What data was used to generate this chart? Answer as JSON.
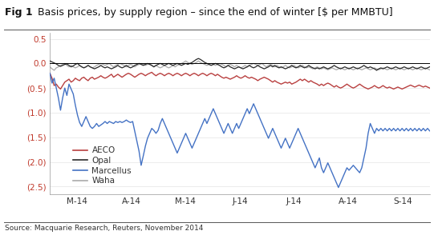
{
  "title_bold": "Fig 1",
  "title_normal": "   Basis prices, by supply region – since the end of winter [$ per MMBTU]",
  "source": "Source: Macquarie Research, Reuters, November 2014",
  "xlabel_ticks": [
    "M-14",
    "A-14",
    "M-14",
    "J-14",
    "J-14",
    "A-14",
    "S-14"
  ],
  "ylim": [
    -2.65,
    0.62
  ],
  "yticks": [
    0.5,
    0.0,
    -0.5,
    -1.0,
    -1.5,
    -2.0,
    -2.5
  ],
  "ytick_labels": [
    "0.5",
    "0.0",
    "(0.5)",
    "(1.0)",
    "(1.5)",
    "(2.0)",
    "(2.5)"
  ],
  "background_color": "#ffffff",
  "title_fontsize": 9.0,
  "axis_fontsize": 7.5,
  "legend_colors": {
    "AECO": "#b94040",
    "Opal": "#2a2a2a",
    "Marcellus": "#4472c4",
    "Waha": "#aaaaaa"
  },
  "n_points": 180,
  "aeco": [
    -0.2,
    -0.3,
    -0.45,
    -0.42,
    -0.48,
    -0.52,
    -0.45,
    -0.38,
    -0.35,
    -0.32,
    -0.38,
    -0.35,
    -0.3,
    -0.33,
    -0.35,
    -0.3,
    -0.28,
    -0.32,
    -0.35,
    -0.3,
    -0.28,
    -0.32,
    -0.3,
    -0.28,
    -0.25,
    -0.28,
    -0.3,
    -0.28,
    -0.25,
    -0.22,
    -0.28,
    -0.25,
    -0.22,
    -0.25,
    -0.28,
    -0.25,
    -0.22,
    -0.2,
    -0.22,
    -0.25,
    -0.28,
    -0.25,
    -0.22,
    -0.2,
    -0.22,
    -0.25,
    -0.22,
    -0.2,
    -0.18,
    -0.22,
    -0.25,
    -0.22,
    -0.2,
    -0.22,
    -0.25,
    -0.22,
    -0.2,
    -0.22,
    -0.25,
    -0.22,
    -0.2,
    -0.22,
    -0.25,
    -0.22,
    -0.2,
    -0.22,
    -0.25,
    -0.22,
    -0.2,
    -0.22,
    -0.25,
    -0.22,
    -0.2,
    -0.22,
    -0.25,
    -0.22,
    -0.2,
    -0.22,
    -0.25,
    -0.22,
    -0.25,
    -0.28,
    -0.3,
    -0.28,
    -0.3,
    -0.32,
    -0.3,
    -0.28,
    -0.25,
    -0.28,
    -0.3,
    -0.28,
    -0.25,
    -0.28,
    -0.3,
    -0.28,
    -0.3,
    -0.32,
    -0.35,
    -0.32,
    -0.3,
    -0.28,
    -0.3,
    -0.32,
    -0.35,
    -0.38,
    -0.35,
    -0.38,
    -0.4,
    -0.42,
    -0.4,
    -0.38,
    -0.4,
    -0.38,
    -0.42,
    -0.4,
    -0.38,
    -0.35,
    -0.32,
    -0.35,
    -0.32,
    -0.35,
    -0.38,
    -0.35,
    -0.38,
    -0.4,
    -0.42,
    -0.45,
    -0.42,
    -0.45,
    -0.42,
    -0.4,
    -0.42,
    -0.45,
    -0.48,
    -0.45,
    -0.48,
    -0.5,
    -0.48,
    -0.45,
    -0.42,
    -0.45,
    -0.48,
    -0.5,
    -0.48,
    -0.45,
    -0.42,
    -0.45,
    -0.48,
    -0.5,
    -0.52,
    -0.5,
    -0.48,
    -0.45,
    -0.48,
    -0.5,
    -0.48,
    -0.45,
    -0.48,
    -0.5,
    -0.48,
    -0.5,
    -0.52,
    -0.5,
    -0.48,
    -0.5,
    -0.52,
    -0.5,
    -0.48,
    -0.46,
    -0.44,
    -0.46,
    -0.48,
    -0.46,
    -0.44,
    -0.46,
    -0.48,
    -0.46,
    -0.48,
    -0.5
  ],
  "opal": [
    0.05,
    0.03,
    0.01,
    -0.01,
    -0.04,
    -0.06,
    -0.04,
    -0.02,
    -0.01,
    -0.04,
    -0.07,
    -0.05,
    -0.02,
    0.0,
    -0.04,
    -0.07,
    -0.09,
    -0.07,
    -0.04,
    -0.07,
    -0.09,
    -0.11,
    -0.09,
    -0.07,
    -0.04,
    -0.07,
    -0.09,
    -0.07,
    -0.09,
    -0.11,
    -0.09,
    -0.07,
    -0.04,
    -0.07,
    -0.09,
    -0.07,
    -0.04,
    -0.07,
    -0.09,
    -0.07,
    -0.04,
    -0.02,
    0.0,
    -0.02,
    -0.04,
    -0.02,
    0.0,
    -0.02,
    -0.04,
    -0.07,
    -0.04,
    -0.02,
    0.0,
    -0.02,
    -0.04,
    -0.02,
    0.0,
    -0.02,
    -0.04,
    -0.02,
    0.0,
    -0.02,
    -0.04,
    -0.02,
    0.0,
    -0.02,
    0.0,
    0.02,
    0.05,
    0.08,
    0.1,
    0.08,
    0.05,
    0.02,
    0.0,
    -0.02,
    -0.04,
    -0.02,
    0.0,
    -0.02,
    -0.04,
    -0.07,
    -0.09,
    -0.07,
    -0.04,
    -0.07,
    -0.09,
    -0.11,
    -0.09,
    -0.07,
    -0.09,
    -0.11,
    -0.09,
    -0.07,
    -0.04,
    -0.07,
    -0.09,
    -0.07,
    -0.04,
    -0.07,
    -0.09,
    -0.11,
    -0.09,
    -0.07,
    -0.04,
    -0.07,
    -0.04,
    -0.07,
    -0.09,
    -0.07,
    -0.09,
    -0.11,
    -0.09,
    -0.07,
    -0.04,
    -0.07,
    -0.09,
    -0.07,
    -0.04,
    -0.07,
    -0.09,
    -0.07,
    -0.04,
    -0.07,
    -0.09,
    -0.11,
    -0.09,
    -0.11,
    -0.09,
    -0.07,
    -0.09,
    -0.11,
    -0.09,
    -0.07,
    -0.04,
    -0.07,
    -0.09,
    -0.11,
    -0.09,
    -0.07,
    -0.09,
    -0.11,
    -0.09,
    -0.07,
    -0.09,
    -0.11,
    -0.09,
    -0.07,
    -0.04,
    -0.07,
    -0.09,
    -0.07,
    -0.09,
    -0.11,
    -0.14,
    -0.11,
    -0.09,
    -0.11,
    -0.09,
    -0.07,
    -0.09,
    -0.11,
    -0.09,
    -0.07,
    -0.09,
    -0.11,
    -0.09,
    -0.07,
    -0.09,
    -0.11,
    -0.09,
    -0.07,
    -0.09,
    -0.11,
    -0.09,
    -0.07,
    -0.09,
    -0.11,
    -0.09,
    -0.07
  ],
  "marcellus": [
    -0.2,
    -0.4,
    -0.3,
    -0.5,
    -0.7,
    -0.95,
    -0.7,
    -0.5,
    -0.65,
    -0.42,
    -0.52,
    -0.62,
    -0.85,
    -1.05,
    -1.2,
    -1.28,
    -1.18,
    -1.08,
    -1.18,
    -1.28,
    -1.32,
    -1.28,
    -1.22,
    -1.28,
    -1.25,
    -1.22,
    -1.18,
    -1.22,
    -1.18,
    -1.2,
    -1.22,
    -1.18,
    -1.2,
    -1.18,
    -1.2,
    -1.18,
    -1.15,
    -1.18,
    -1.2,
    -1.18,
    -1.38,
    -1.58,
    -1.78,
    -2.07,
    -1.88,
    -1.68,
    -1.52,
    -1.42,
    -1.32,
    -1.36,
    -1.42,
    -1.36,
    -1.22,
    -1.12,
    -1.22,
    -1.32,
    -1.42,
    -1.52,
    -1.62,
    -1.72,
    -1.82,
    -1.72,
    -1.62,
    -1.52,
    -1.42,
    -1.52,
    -1.62,
    -1.72,
    -1.62,
    -1.52,
    -1.42,
    -1.32,
    -1.22,
    -1.12,
    -1.22,
    -1.12,
    -1.02,
    -0.92,
    -1.02,
    -1.12,
    -1.22,
    -1.32,
    -1.42,
    -1.32,
    -1.22,
    -1.32,
    -1.42,
    -1.32,
    -1.22,
    -1.32,
    -1.22,
    -1.12,
    -1.02,
    -0.92,
    -1.02,
    -0.92,
    -0.82,
    -0.92,
    -1.02,
    -1.12,
    -1.22,
    -1.32,
    -1.42,
    -1.52,
    -1.42,
    -1.32,
    -1.42,
    -1.52,
    -1.62,
    -1.72,
    -1.62,
    -1.52,
    -1.62,
    -1.72,
    -1.62,
    -1.52,
    -1.42,
    -1.32,
    -1.42,
    -1.52,
    -1.62,
    -1.72,
    -1.82,
    -1.92,
    -2.02,
    -2.12,
    -2.02,
    -1.92,
    -2.12,
    -2.22,
    -2.12,
    -2.02,
    -2.12,
    -2.22,
    -2.32,
    -2.42,
    -2.52,
    -2.42,
    -2.32,
    -2.22,
    -2.12,
    -2.17,
    -2.12,
    -2.07,
    -2.12,
    -2.17,
    -2.22,
    -2.12,
    -1.92,
    -1.72,
    -1.42,
    -1.22,
    -1.32,
    -1.42,
    -1.32,
    -1.37,
    -1.32,
    -1.37,
    -1.32,
    -1.37,
    -1.32,
    -1.37,
    -1.32,
    -1.37,
    -1.32,
    -1.37,
    -1.32,
    -1.37,
    -1.32,
    -1.37,
    -1.32,
    -1.37,
    -1.32,
    -1.37,
    -1.32,
    -1.37,
    -1.32,
    -1.37,
    -1.32,
    -1.37
  ],
  "waha": [
    -0.07,
    -0.11,
    -0.14,
    -0.09,
    -0.07,
    -0.04,
    -0.02,
    0.0,
    -0.04,
    -0.07,
    -0.04,
    -0.07,
    -0.09,
    -0.07,
    -0.04,
    -0.07,
    -0.09,
    -0.07,
    -0.04,
    -0.07,
    -0.09,
    -0.07,
    -0.04,
    -0.02,
    0.0,
    -0.02,
    -0.04,
    -0.02,
    0.0,
    -0.04,
    -0.07,
    -0.04,
    -0.02,
    0.0,
    -0.02,
    -0.04,
    -0.07,
    -0.04,
    -0.02,
    -0.04,
    -0.07,
    -0.04,
    -0.02,
    0.0,
    -0.02,
    -0.04,
    -0.02,
    0.0,
    -0.04,
    -0.07,
    -0.04,
    -0.07,
    -0.09,
    -0.07,
    -0.04,
    -0.07,
    -0.09,
    -0.07,
    -0.04,
    -0.07,
    -0.04,
    -0.02,
    0.0,
    0.02,
    0.05,
    0.02,
    0.0,
    -0.02,
    0.0,
    0.02,
    0.05,
    0.02,
    0.0,
    -0.02,
    -0.04,
    -0.02,
    0.0,
    -0.02,
    -0.04,
    -0.02,
    0.0,
    -0.02,
    -0.04,
    -0.07,
    -0.04,
    -0.02,
    -0.04,
    -0.07,
    -0.04,
    -0.07,
    -0.09,
    -0.07,
    -0.04,
    -0.07,
    -0.04,
    -0.02,
    0.0,
    -0.02,
    -0.04,
    -0.02,
    0.0,
    -0.04,
    -0.07,
    -0.04,
    -0.02,
    -0.04,
    -0.07,
    -0.04,
    -0.07,
    -0.09,
    -0.07,
    -0.04,
    -0.07,
    -0.09,
    -0.07,
    -0.04,
    -0.07,
    -0.09,
    -0.07,
    -0.04,
    -0.07,
    -0.09,
    -0.07,
    -0.09,
    -0.11,
    -0.09,
    -0.07,
    -0.09,
    -0.11,
    -0.09,
    -0.11,
    -0.13,
    -0.11,
    -0.09,
    -0.11,
    -0.13,
    -0.11,
    -0.09,
    -0.11,
    -0.13,
    -0.11,
    -0.09,
    -0.11,
    -0.13,
    -0.11,
    -0.09,
    -0.11,
    -0.13,
    -0.11,
    -0.09,
    -0.11,
    -0.13,
    -0.11,
    -0.09,
    -0.11,
    -0.13,
    -0.11,
    -0.09,
    -0.11,
    -0.13,
    -0.11,
    -0.09,
    -0.11,
    -0.13,
    -0.11,
    -0.09,
    -0.11,
    -0.13,
    -0.11,
    -0.09,
    -0.11,
    -0.13,
    -0.11,
    -0.09,
    -0.11,
    -0.13,
    -0.11,
    -0.09,
    -0.11,
    -0.13
  ]
}
